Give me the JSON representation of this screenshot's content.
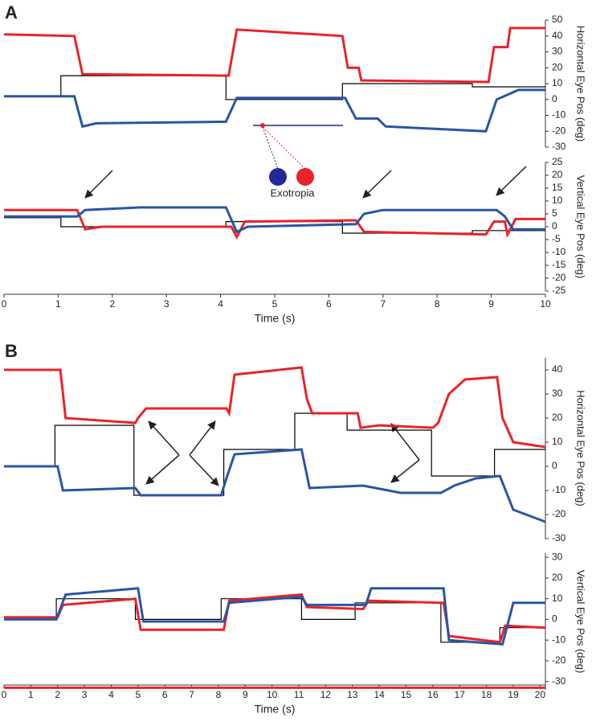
{
  "chart_data": [
    {
      "type": "line",
      "panel_label": "A",
      "annotation": "Exotropia",
      "y_label": "Horizontal Eye Pos (deg)",
      "xlim": [
        0,
        10
      ],
      "ylim": [
        -30,
        50
      ],
      "yticks": [
        -30,
        -20,
        -10,
        0,
        10,
        20,
        30,
        40,
        50
      ],
      "series": [
        {
          "color": "#000000",
          "x": [
            0,
            1.05,
            1.05,
            4.1,
            4.1,
            6.25,
            6.25,
            8.65,
            8.65,
            10
          ],
          "values": [
            2,
            2,
            15,
            15,
            0,
            0,
            10,
            10,
            8,
            8
          ]
        },
        {
          "color": "#e8232a",
          "x": [
            0,
            1.3,
            1.45,
            4.15,
            4.3,
            6.25,
            6.35,
            6.55,
            6.6,
            8.95,
            9.05,
            9.3,
            9.35,
            10
          ],
          "values": [
            41,
            40,
            16,
            15,
            44,
            40,
            20,
            20,
            12,
            11,
            33,
            33,
            45,
            45
          ]
        },
        {
          "color": "#2a55a5",
          "x": [
            0,
            1.3,
            1.45,
            1.7,
            4.1,
            4.3,
            6.3,
            6.5,
            6.9,
            7.05,
            8.9,
            9.1,
            9.5,
            10
          ],
          "values": [
            2,
            2,
            -17,
            -15,
            -14,
            1,
            1,
            -12,
            -12,
            -17,
            -20,
            0,
            6,
            6
          ]
        }
      ]
    },
    {
      "type": "line",
      "y_label": "Vertical Eye Pos (deg)",
      "x_label": "Time (s)",
      "xlim": [
        0,
        10
      ],
      "xticks": [
        0,
        1,
        2,
        3,
        4,
        5,
        6,
        7,
        8,
        9,
        10
      ],
      "ylim": [
        -25,
        25
      ],
      "yticks": [
        -25,
        -20,
        -15,
        -10,
        -5,
        0,
        5,
        10,
        15,
        20,
        25
      ],
      "series": [
        {
          "color": "#000000",
          "x": [
            0,
            1.05,
            1.05,
            4.1,
            4.1,
            6.25,
            6.25,
            8.65,
            8.65,
            10
          ],
          "values": [
            3.5,
            3.5,
            0,
            0,
            2,
            2,
            -2.5,
            -2.5,
            -1.5,
            -1.5
          ]
        },
        {
          "color": "#e8232a",
          "x": [
            0,
            1.35,
            1.5,
            1.8,
            4.2,
            4.3,
            4.45,
            6.5,
            6.65,
            8.9,
            9.05,
            9.25,
            9.3,
            9.45,
            10
          ],
          "values": [
            6.5,
            6.5,
            -1,
            0,
            0,
            -4,
            2,
            2.5,
            -2,
            -3,
            2,
            2,
            -3,
            3,
            3
          ]
        },
        {
          "color": "#2a55a5",
          "x": [
            0,
            1.35,
            1.5,
            2.5,
            4.1,
            4.3,
            4.5,
            6.5,
            6.65,
            7,
            9.1,
            9.25,
            9.4,
            10
          ],
          "values": [
            4,
            4,
            6.5,
            7.5,
            7.5,
            -2,
            0,
            1,
            5,
            6.5,
            6.5,
            4,
            -1,
            -1
          ]
        }
      ]
    },
    {
      "type": "line",
      "panel_label": "B",
      "y_label": "Horizontal Eye Pos (deg)",
      "xlim": [
        0,
        20.2
      ],
      "ylim": [
        -30,
        45
      ],
      "yticks": [
        -30,
        -20,
        -10,
        0,
        10,
        20,
        30,
        40
      ],
      "series": [
        {
          "color": "#000000",
          "x": [
            0,
            1.9,
            1.9,
            4.85,
            4.85,
            8.2,
            8.2,
            10.85,
            10.85,
            12.8,
            12.8,
            15.95,
            15.95,
            18.3,
            18.3,
            20.2
          ],
          "values": [
            0,
            0,
            17,
            17,
            -12,
            -12,
            7,
            7,
            22,
            22,
            15,
            15,
            -4,
            -4,
            7,
            7
          ]
        },
        {
          "color": "#e8232a",
          "x": [
            0,
            2.1,
            2.3,
            4.9,
            5,
            5.3,
            8.3,
            8.4,
            8.6,
            11.1,
            11.3,
            11.5,
            13.2,
            13.3,
            14,
            16,
            16.2,
            16.6,
            17.2,
            18.4,
            18.6,
            19,
            20.2
          ],
          "values": [
            40,
            40,
            20,
            18,
            20,
            24,
            24,
            22,
            38,
            41,
            28,
            22,
            22,
            16,
            17,
            16,
            18,
            30,
            36,
            37,
            20,
            10,
            8
          ]
        },
        {
          "color": "#2a55a5",
          "x": [
            0,
            2,
            2.2,
            4.9,
            5.1,
            8.1,
            8.3,
            8.6,
            11.1,
            11.4,
            13.4,
            14.8,
            16.3,
            16.8,
            17.6,
            18.5,
            19,
            20.2
          ],
          "values": [
            0,
            0,
            -10,
            -9,
            -12,
            -12,
            -5,
            5,
            7,
            -9,
            -8,
            -11,
            -11,
            -8,
            -5,
            -4,
            -18,
            -23
          ]
        }
      ]
    },
    {
      "type": "line",
      "y_label": "Vertical Eye Pos (deg)",
      "x_label": "Time (s)",
      "xlim": [
        0,
        20.2
      ],
      "xticks": [
        0,
        1,
        2,
        3,
        4,
        5,
        6,
        7,
        8,
        9,
        10,
        11,
        12,
        13,
        14,
        15,
        16,
        17,
        18,
        19,
        20
      ],
      "ylim": [
        -34,
        32
      ],
      "yticks": [
        -30,
        -20,
        -10,
        0,
        10,
        20,
        30
      ],
      "series": [
        {
          "color": "#000000",
          "x": [
            0,
            1.95,
            1.95,
            4.9,
            4.9,
            8.1,
            8.1,
            11.1,
            11.1,
            13.1,
            13.1,
            16.3,
            16.3,
            18.5,
            18.5,
            20.2
          ],
          "values": [
            0,
            0,
            10,
            10,
            0,
            0,
            10,
            10,
            0,
            0,
            8,
            8,
            -11,
            -11,
            -4,
            -4
          ]
        },
        {
          "color": "#e8232a",
          "x": [
            0,
            2,
            2.2,
            4.9,
            5.1,
            8.2,
            8.4,
            11.1,
            11.3,
            13.4,
            13.6,
            16.4,
            16.6,
            18.5,
            18.7,
            20.2
          ],
          "values": [
            1,
            1,
            7,
            10,
            -5,
            -5,
            9,
            12,
            6,
            5,
            9,
            8,
            -8,
            -11,
            -3,
            -4
          ]
        },
        {
          "color": "#2a55a5",
          "x": [
            0,
            1.95,
            2.3,
            5,
            5.2,
            8.2,
            8.4,
            11.1,
            11.3,
            13.5,
            13.7,
            16.4,
            16.6,
            18.6,
            19,
            20.2
          ],
          "values": [
            0,
            0,
            12,
            15,
            -1,
            -1,
            8,
            11,
            7,
            7,
            15,
            15,
            -10,
            -12,
            8,
            8
          ]
        },
        {
          "color": "#e8232a",
          "x": [
            0,
            20.2
          ],
          "values": [
            -33,
            -33
          ]
        }
      ]
    }
  ]
}
